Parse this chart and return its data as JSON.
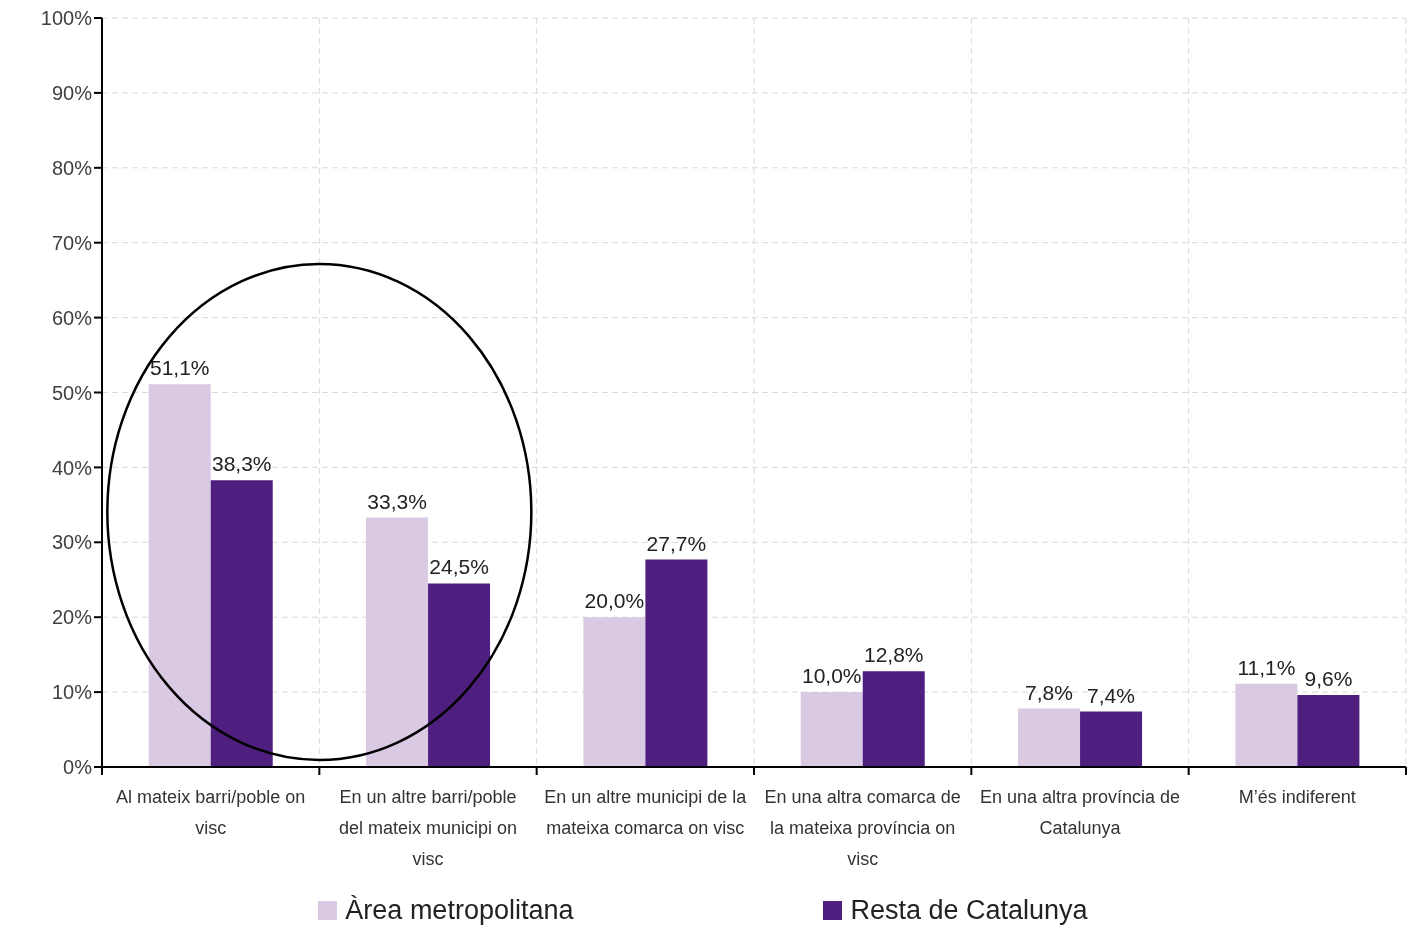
{
  "chart_data": {
    "type": "bar",
    "categories": [
      "Al mateix barri/poble on visc",
      "En un altre barri/poble del mateix municipi on visc",
      "En un altre municipi de la mateixa comarca on visc",
      "En una altra comarca de la mateixa província on visc",
      "En una altra província de Catalunya",
      "M’és indiferent"
    ],
    "series": [
      {
        "name": "Àrea metropolitana",
        "color": "#d9c9e3",
        "values": [
          51.1,
          33.3,
          20.0,
          10.0,
          7.8,
          11.1
        ],
        "value_labels": [
          "51,1%",
          "33,3%",
          "20,0%",
          "10,0%",
          "7,8%",
          "11,1%"
        ]
      },
      {
        "name": "Resta de Catalunya",
        "color": "#4f1f80",
        "values": [
          38.3,
          24.5,
          27.7,
          12.8,
          7.4,
          9.6
        ],
        "value_labels": [
          "38,3%",
          "24,5%",
          "27,7%",
          "12,8%",
          "7,4%",
          "9,6%"
        ]
      }
    ],
    "ylim": [
      0,
      100
    ],
    "yticks": [
      {
        "value": 0,
        "label": "0%"
      },
      {
        "value": 10,
        "label": "10%"
      },
      {
        "value": 20,
        "label": "20%"
      },
      {
        "value": 30,
        "label": "30%"
      },
      {
        "value": 40,
        "label": "40%"
      },
      {
        "value": 50,
        "label": "50%"
      },
      {
        "value": 60,
        "label": "60%"
      },
      {
        "value": 70,
        "label": "70%"
      },
      {
        "value": 80,
        "label": "80%"
      },
      {
        "value": 90,
        "label": "90%"
      },
      {
        "value": 100,
        "label": "100%"
      }
    ],
    "grid": true,
    "legend": "bottom"
  }
}
